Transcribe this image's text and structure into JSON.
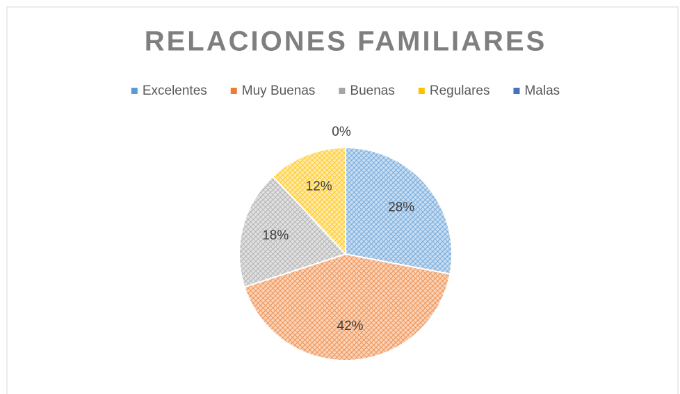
{
  "chart_data": {
    "type": "pie",
    "title": "RELACIONES FAMILIARES",
    "categories": [
      "Excelentes",
      "Muy Buenas",
      "Buenas",
      "Regulares",
      "Malas"
    ],
    "values": [
      28,
      42,
      18,
      12,
      0
    ],
    "value_labels": [
      "28%",
      "42%",
      "18%",
      "12%",
      "0%"
    ],
    "colors": [
      "#5b9bd5",
      "#ed7d31",
      "#a5a5a5",
      "#ffc000",
      "#4472c4"
    ],
    "legend": "top"
  }
}
